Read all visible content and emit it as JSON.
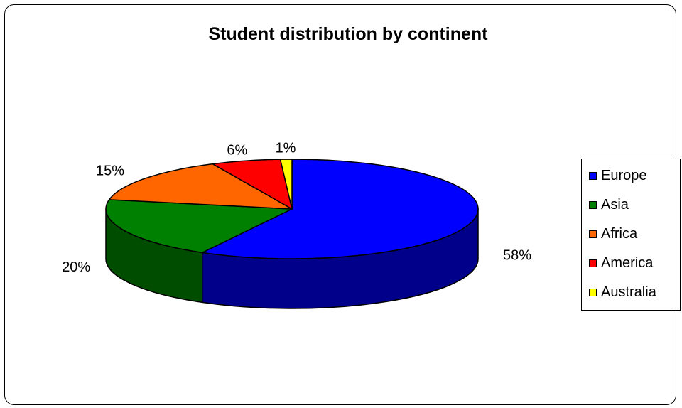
{
  "chart_data": {
    "type": "pie",
    "title": "Student distribution by continent",
    "categories": [
      "Europe",
      "Asia",
      "Africa",
      "America",
      "Australia"
    ],
    "values": [
      58,
      20,
      15,
      6,
      1
    ],
    "labels": [
      "58%",
      "20%",
      "15%",
      "6%",
      "1%"
    ],
    "colors": [
      "#0000ff",
      "#008000",
      "#ff6600",
      "#ff0000",
      "#ffff00"
    ],
    "side_colors": [
      "#00008b",
      "#004d00",
      "#a04000",
      "#a00000",
      "#a0a000"
    ],
    "legend_position": "right",
    "style": "3d"
  }
}
